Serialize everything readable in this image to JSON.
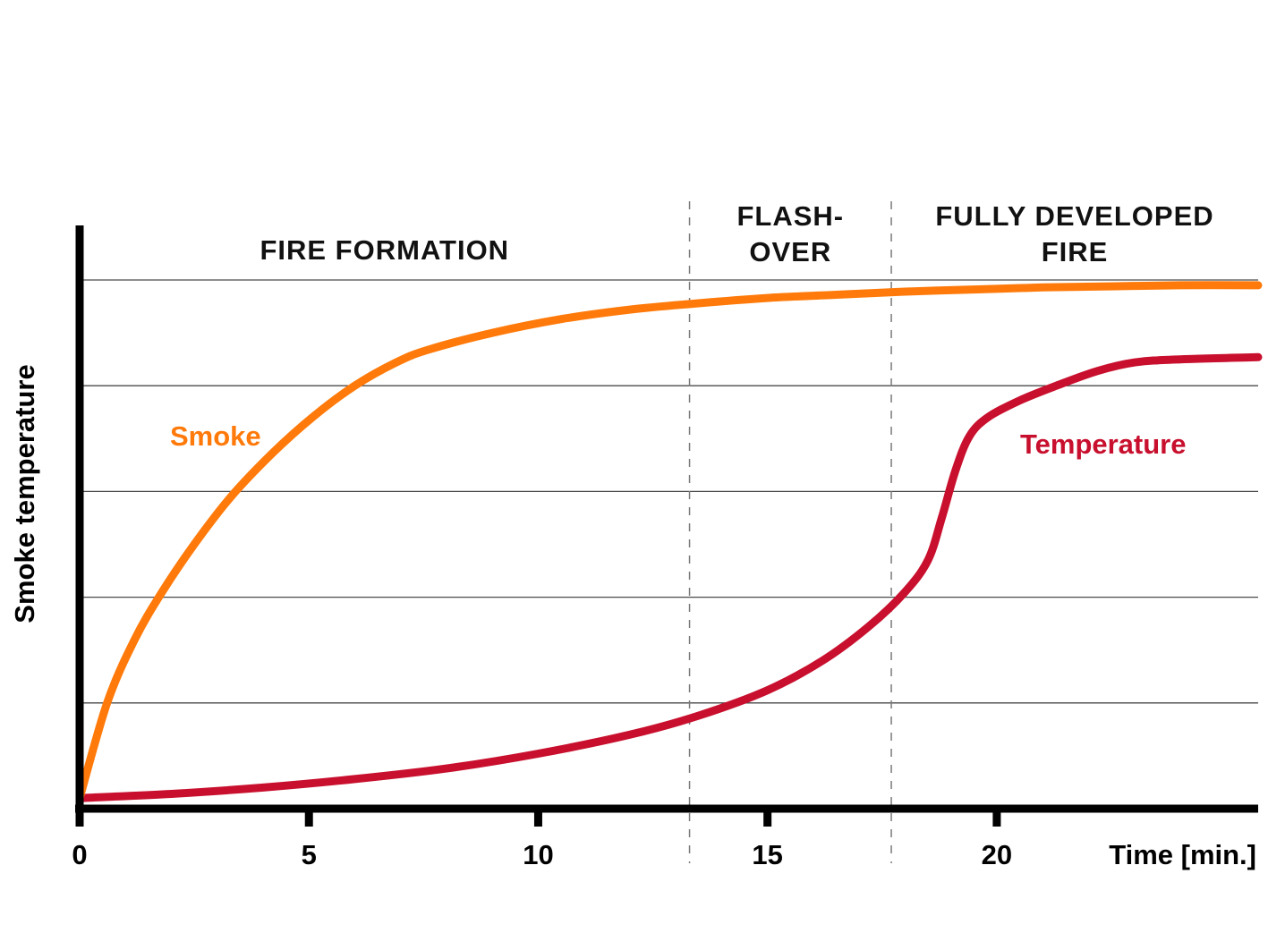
{
  "chart_data": {
    "type": "line",
    "title": "",
    "xlabel": "Time [min.]",
    "ylabel": "Smoke temperature",
    "xlim": [
      0,
      25.7
    ],
    "ylim": [
      0,
      5
    ],
    "x_ticks": [
      0,
      5,
      10,
      15,
      20
    ],
    "y_tick_labels_shown": false,
    "grid": "horizontal",
    "phases": [
      {
        "label_lines": [
          "FIRE FORMATION"
        ],
        "start": 0,
        "end": 13.3
      },
      {
        "label_lines": [
          "FLASH-",
          "OVER"
        ],
        "start": 13.3,
        "end": 17.7
      },
      {
        "label_lines": [
          "FULLY DEVELOPED",
          "FIRE"
        ],
        "start": 17.7,
        "end": 25.7
      }
    ],
    "series": [
      {
        "name": "Smoke",
        "color": "#ff7a0a",
        "x": [
          0,
          0.6,
          1.2,
          1.8,
          2.5,
          3.3,
          4.2,
          5.1,
          6.0,
          6.9,
          7.6,
          9.0,
          10.5,
          12.0,
          13.5,
          15.0,
          16.5,
          18.0,
          19.5,
          21.0,
          22.5,
          24.0,
          25.7
        ],
        "y": [
          0.1,
          1.0,
          1.6,
          2.05,
          2.5,
          2.95,
          3.36,
          3.71,
          4.0,
          4.22,
          4.34,
          4.5,
          4.63,
          4.72,
          4.78,
          4.83,
          4.86,
          4.89,
          4.91,
          4.93,
          4.94,
          4.95,
          4.95
        ]
      },
      {
        "name": "Temperature",
        "color": "#c8102e",
        "x": [
          0,
          2.0,
          4.0,
          6.0,
          8.0,
          10.0,
          12.0,
          13.5,
          15.0,
          16.2,
          17.2,
          18.0,
          18.5,
          18.8,
          19.1,
          19.4,
          19.8,
          20.5,
          21.3,
          22.2,
          23.0,
          24.0,
          25.7
        ],
        "y": [
          0.1,
          0.14,
          0.2,
          0.28,
          0.38,
          0.52,
          0.7,
          0.88,
          1.12,
          1.4,
          1.72,
          2.05,
          2.35,
          2.75,
          3.2,
          3.52,
          3.7,
          3.86,
          4.0,
          4.14,
          4.22,
          4.25,
          4.27
        ]
      }
    ],
    "series_label_positions": [
      "Smoke near x=2.7, y=3.5",
      "Temperature near x=22.2, y=3.45"
    ]
  }
}
